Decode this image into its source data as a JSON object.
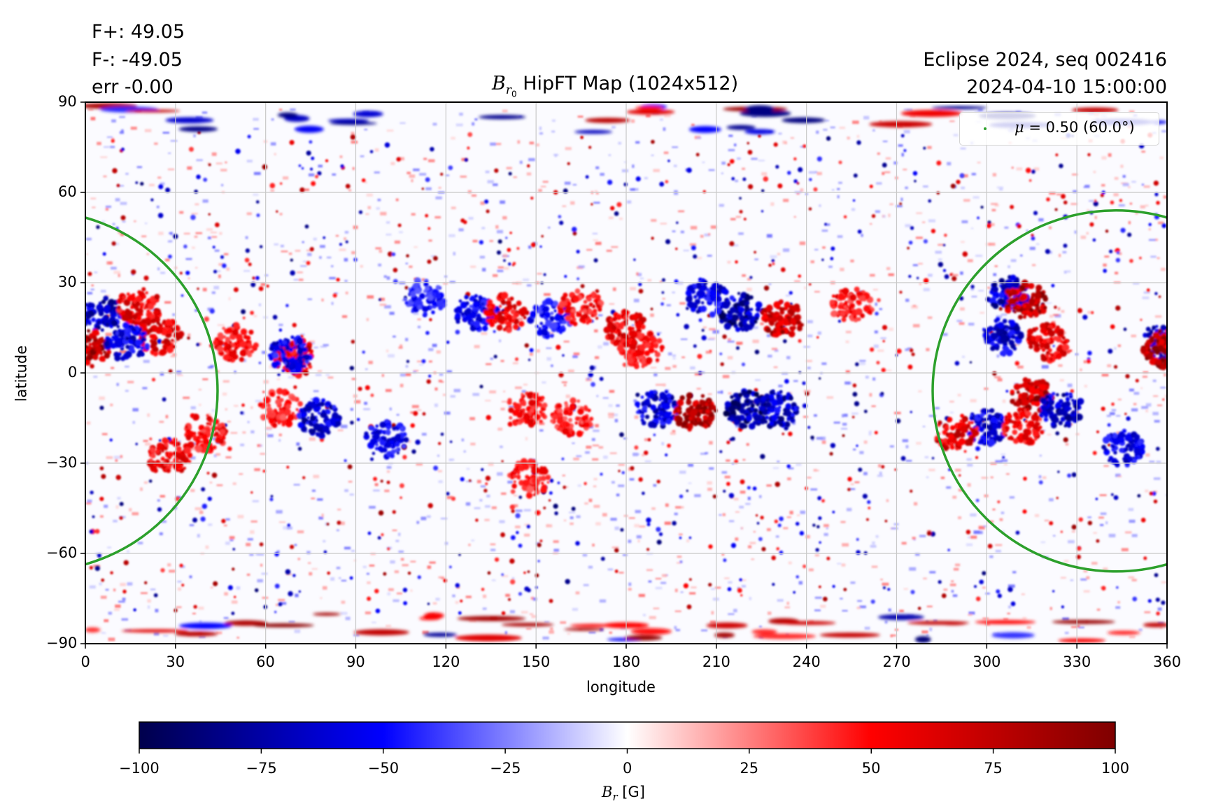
{
  "header": {
    "flux_positive": "F+: 49.05",
    "flux_negative": "F-: -49.05",
    "flux_error": "err -0.00",
    "title_symbol": "B",
    "title_subscript": "r",
    "title_subsubscript": "0",
    "title_text": " HipFT Map (1024x512)",
    "run_label": "Eclipse 2024, seq 002416",
    "timestamp": "2024-04-10 15:00:00"
  },
  "legend": {
    "mu_symbol": "μ",
    "label": " = 0.50 (60.0°)",
    "marker_color": "#2ca02c"
  },
  "colors": {
    "contour": "#2ca02c",
    "grid": "#c8c8c8",
    "cmap_stops": [
      "#00004c",
      "#0000ff",
      "#ffffff",
      "#ff0000",
      "#7f0000"
    ]
  },
  "chart_data": {
    "type": "heatmap",
    "title": "B_r0 HipFT Map (1024x512)",
    "xlabel": "longitude",
    "ylabel": "latitude",
    "xlim": [
      0,
      360
    ],
    "ylim": [
      -90,
      90
    ],
    "xticks": [
      "0",
      "30",
      "60",
      "90",
      "120",
      "150",
      "180",
      "210",
      "240",
      "270",
      "300",
      "330",
      "360"
    ],
    "xtick_values": [
      0,
      30,
      60,
      90,
      120,
      150,
      180,
      210,
      240,
      270,
      300,
      330,
      360
    ],
    "yticks": [
      "90",
      "60",
      "30",
      "0",
      "−30",
      "−60",
      "−90"
    ],
    "ytick_values": [
      90,
      60,
      30,
      0,
      -30,
      -60,
      -90
    ],
    "grid": true,
    "colormap": "seismic",
    "colorbar": {
      "label_symbol": "B",
      "label_subscript": "r",
      "label_unit": " [G]",
      "range": [
        -100,
        100
      ],
      "ticks": [
        "−100",
        "−75",
        "−50",
        "−25",
        "0",
        "25",
        "50",
        "75",
        "100"
      ],
      "tick_values": [
        -100,
        -75,
        -50,
        -25,
        0,
        25,
        50,
        75,
        100
      ],
      "orientation": "horizontal"
    },
    "contour": {
      "label": "μ = 0.50 (60.0°)",
      "center_lon": 343,
      "center_lat": -6,
      "lat_top": 54,
      "lat_bottom": -66,
      "lon_extent": 61
    },
    "active_regions": [
      {
        "lon": 5,
        "lat": 20,
        "value": -80
      },
      {
        "lon": 1,
        "lat": 8,
        "value": 95
      },
      {
        "lon": 18,
        "lat": 22,
        "value": 70
      },
      {
        "lon": 25,
        "lat": 12,
        "value": 75
      },
      {
        "lon": 14,
        "lat": 10,
        "value": -70
      },
      {
        "lon": 40,
        "lat": -20,
        "value": 60
      },
      {
        "lon": 28,
        "lat": -28,
        "value": 65
      },
      {
        "lon": 50,
        "lat": 10,
        "value": 60
      },
      {
        "lon": 70,
        "lat": 5,
        "value": 75
      },
      {
        "lon": 68,
        "lat": 6,
        "value": -70
      },
      {
        "lon": 65,
        "lat": -12,
        "value": 55
      },
      {
        "lon": 78,
        "lat": -15,
        "value": -75
      },
      {
        "lon": 100,
        "lat": -22,
        "value": -65
      },
      {
        "lon": 113,
        "lat": 25,
        "value": -55
      },
      {
        "lon": 130,
        "lat": 20,
        "value": -65
      },
      {
        "lon": 140,
        "lat": 20,
        "value": 70
      },
      {
        "lon": 155,
        "lat": 18,
        "value": -60
      },
      {
        "lon": 165,
        "lat": 22,
        "value": 60
      },
      {
        "lon": 147,
        "lat": -12,
        "value": 60
      },
      {
        "lon": 162,
        "lat": -15,
        "value": 55
      },
      {
        "lon": 148,
        "lat": -35,
        "value": 55
      },
      {
        "lon": 180,
        "lat": 15,
        "value": 70
      },
      {
        "lon": 185,
        "lat": 8,
        "value": 60
      },
      {
        "lon": 190,
        "lat": -12,
        "value": -75
      },
      {
        "lon": 203,
        "lat": -13,
        "value": 95
      },
      {
        "lon": 218,
        "lat": 20,
        "value": -90
      },
      {
        "lon": 207,
        "lat": 25,
        "value": -70
      },
      {
        "lon": 232,
        "lat": 18,
        "value": 85
      },
      {
        "lon": 220,
        "lat": -12,
        "value": -95
      },
      {
        "lon": 230,
        "lat": -12,
        "value": -80
      },
      {
        "lon": 255,
        "lat": 22,
        "value": 55
      },
      {
        "lon": 307,
        "lat": 26,
        "value": -80
      },
      {
        "lon": 313,
        "lat": 24,
        "value": 90
      },
      {
        "lon": 305,
        "lat": 12,
        "value": -75
      },
      {
        "lon": 320,
        "lat": 10,
        "value": 70
      },
      {
        "lon": 315,
        "lat": -8,
        "value": 90
      },
      {
        "lon": 325,
        "lat": -12,
        "value": -80
      },
      {
        "lon": 300,
        "lat": -18,
        "value": -70
      },
      {
        "lon": 290,
        "lat": -20,
        "value": 75
      },
      {
        "lon": 312,
        "lat": -18,
        "value": 65
      },
      {
        "lon": 345,
        "lat": -25,
        "value": -70
      },
      {
        "lon": 358,
        "lat": 10,
        "value": -85
      },
      {
        "lon": 359,
        "lat": 8,
        "value": 95
      }
    ]
  }
}
